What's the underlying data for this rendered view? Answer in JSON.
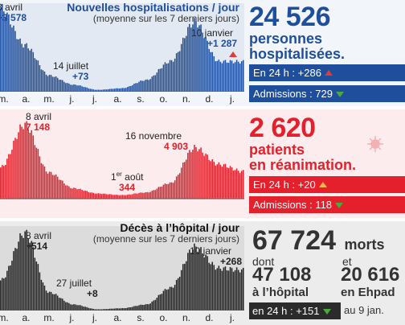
{
  "hosp": {
    "title": "Nouvelles hospitalisations / jour",
    "subtitle": "(moyenne sur les 7 derniers jours)",
    "annotations": [
      {
        "label": "3 avril",
        "value": "+3 578"
      },
      {
        "label": "14 juillet",
        "value": "+73"
      },
      {
        "label": "10 janvier",
        "value": "+1 287"
      }
    ],
    "stat": {
      "number": "24 526",
      "line1": "personnes",
      "line2": "hospitalisées.",
      "in24h": "En 24 h : +286",
      "admissions": "Admissions : 729"
    }
  },
  "rea": {
    "annotations": [
      {
        "label": "8 avril",
        "value": "7 148"
      },
      {
        "label": "16 novembre",
        "value": "4 903"
      },
      {
        "label_prefix": "1",
        "label_sup": "er",
        "label_suffix": " août",
        "value": "344"
      }
    ],
    "stat": {
      "number": "2 620",
      "line1": "patients",
      "line2": "en réanimation.",
      "in24h": "En 24 h : +20",
      "admissions": "Admissions : 118"
    }
  },
  "deces": {
    "title": "Décès à l’hôpital / jour",
    "subtitle": "(moyenne sur les 7 derniers jours)",
    "annotations": [
      {
        "label": "8 avril",
        "value": "+514"
      },
      {
        "label": "27 juillet",
        "value": "+8"
      },
      {
        "label": "10 janvier",
        "value": "+268"
      }
    ],
    "stat": {
      "number": "67 724",
      "unit": "morts",
      "dont": "dont",
      "et": "et",
      "hopital_number": "47 108",
      "hopital_label": "à l’hôpital",
      "ehpad_number": "20 616",
      "ehpad_label": "en Ehpad",
      "in24h": "en 24 h : +151",
      "date": "au 9 jan."
    }
  },
  "months": [
    "m.",
    "a.",
    "m.",
    "j.",
    "j.",
    "a.",
    "s.",
    "o.",
    "n.",
    "d.",
    "j."
  ],
  "colors": {
    "blue": "#1f4f9c",
    "red": "#e3202b",
    "dark": "#222222",
    "blue_bar": "#1f4f9c",
    "red_bar": "#e3202b",
    "dark_bar": "#2b2b2b"
  },
  "chart_data": [
    {
      "type": "bar",
      "title": "Nouvelles hospitalisations / jour",
      "subtitle": "(moyenne sur les 7 derniers jours)",
      "x_unit": "mois",
      "x": [
        "mars",
        "avril",
        "mai",
        "juin",
        "juillet",
        "août",
        "septembre",
        "octobre",
        "novembre",
        "décembre",
        "janvier"
      ],
      "values": [
        3578,
        2000,
        700,
        300,
        80,
        150,
        500,
        1300,
        3000,
        1300,
        1287
      ],
      "ylim": [
        0,
        3800
      ]
    },
    {
      "type": "bar",
      "title": "",
      "x": [
        "mars",
        "avril",
        "mai",
        "juin",
        "juillet",
        "août",
        "septembre",
        "octobre",
        "novembre",
        "décembre",
        "janvier"
      ],
      "values": [
        3000,
        7148,
        2500,
        1000,
        500,
        344,
        600,
        1500,
        4903,
        3300,
        2620
      ],
      "ylim": [
        0,
        7500
      ]
    },
    {
      "type": "bar",
      "title": "Décès à l’hôpital / jour",
      "subtitle": "(moyenne sur les 7 derniers jours)",
      "x": [
        "mars",
        "avril",
        "mai",
        "juin",
        "juillet",
        "août",
        "septembre",
        "octobre",
        "novembre",
        "décembre",
        "janvier"
      ],
      "values": [
        200,
        514,
        120,
        40,
        8,
        15,
        40,
        150,
        420,
        280,
        268
      ],
      "ylim": [
        0,
        560
      ]
    }
  ]
}
